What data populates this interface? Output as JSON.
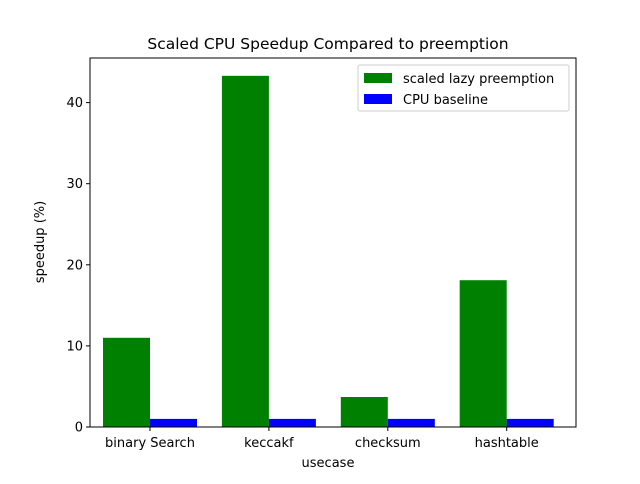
{
  "chart_data": {
    "type": "bar",
    "title": "Scaled CPU Speedup Compared to preemption",
    "xlabel": "usecase",
    "ylabel": "speedup (%)",
    "categories": [
      "binary Search",
      "keccakf",
      "checksum",
      "hashtable"
    ],
    "series": [
      {
        "name": "scaled lazy preemption",
        "color": "#008000",
        "values": [
          11.0,
          43.3,
          3.7,
          18.1
        ]
      },
      {
        "name": "CPU baseline",
        "color": "#0000ff",
        "values": [
          1.0,
          1.0,
          1.0,
          1.0
        ]
      }
    ],
    "ylim": [
      0,
      45.5
    ],
    "yticks": [
      0,
      10,
      20,
      30,
      40
    ],
    "grid": false,
    "legend": "top-right"
  }
}
